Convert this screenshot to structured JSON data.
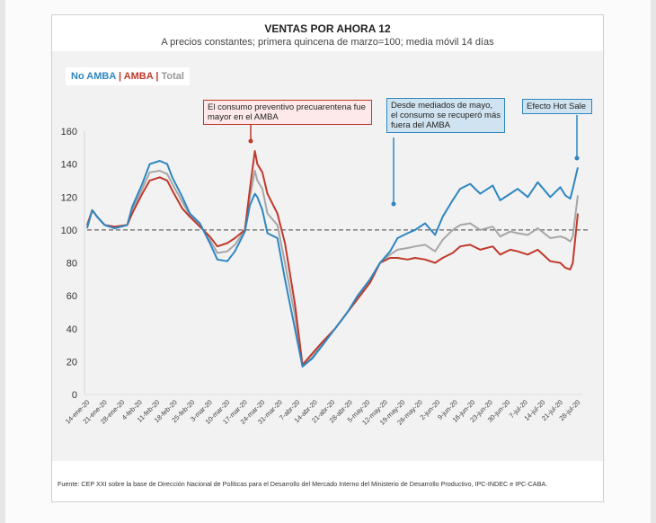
{
  "chart_data": {
    "type": "line",
    "title": "VENTAS POR AHORA 12",
    "subtitle": "A precios constantes; primera quincena de marzo=100; media móvil 14 días",
    "legend": {
      "position": "top-left",
      "entries": [
        {
          "name": "No AMBA",
          "color": "#2e86c1"
        },
        {
          "name": "AMBA",
          "color": "#c0392b"
        },
        {
          "name": "Total",
          "color": "#a6a6a6"
        }
      ],
      "separator": "|"
    },
    "ylim": [
      0,
      160
    ],
    "yticks": [
      0,
      20,
      40,
      60,
      80,
      100,
      120,
      140,
      160
    ],
    "reference_line": 100,
    "xlim": [
      0,
      196
    ],
    "xlabel": "",
    "ylabel": "",
    "xtick_labels": [
      "14-ene-20",
      "21-ene-20",
      "28-ene-20",
      "4-feb-20",
      "11-feb-20",
      "18-feb-20",
      "25-feb-20",
      "3-mar-20",
      "10-mar-20",
      "17-mar-20",
      "24-mar-20",
      "31-mar-20",
      "7-abr-20",
      "14-abr-20",
      "21-abr-20",
      "28-abr-20",
      "5-may-20",
      "12-may-20",
      "19-may-20",
      "26-may-20",
      "2-jun-20",
      "9-jun-20",
      "16-jun-20",
      "23-jun-20",
      "30-jun-20",
      "7-jul-20",
      "14-jul-20",
      "21-jul-20",
      "28-jul-20"
    ],
    "x": [
      0,
      2,
      4,
      7,
      11,
      16,
      18,
      22,
      25,
      29,
      32,
      34,
      38,
      41,
      45,
      49,
      52,
      56,
      59,
      63,
      65,
      67,
      68,
      70,
      72,
      76,
      79,
      83,
      86,
      90,
      94,
      99,
      104,
      108,
      113,
      117,
      121,
      124,
      128,
      131,
      135,
      139,
      142,
      146,
      149,
      153,
      157,
      162,
      165,
      169,
      172,
      176,
      180,
      185,
      189,
      191,
      193,
      194,
      196
    ],
    "series": [
      {
        "name": "No AMBA",
        "values": [
          101,
          112,
          108,
          103,
          101,
          103,
          114,
          128,
          140,
          142,
          140,
          132,
          120,
          110,
          104,
          92,
          82,
          81,
          87,
          99,
          115,
          122,
          120,
          112,
          98,
          95,
          70,
          40,
          17,
          22,
          30,
          40,
          50,
          60,
          70,
          80,
          87,
          95,
          98,
          100,
          104,
          97,
          108,
          118,
          125,
          128,
          122,
          127,
          118,
          122,
          125,
          120,
          129,
          120,
          126,
          121,
          119,
          125,
          138
        ]
      },
      {
        "name": "AMBA",
        "values": [
          103,
          112,
          108,
          103,
          102,
          103,
          110,
          122,
          130,
          132,
          130,
          124,
          113,
          108,
          102,
          96,
          90,
          92,
          95,
          100,
          125,
          148,
          140,
          135,
          122,
          110,
          92,
          55,
          18,
          25,
          32,
          40,
          50,
          58,
          68,
          80,
          83,
          83,
          82,
          83,
          82,
          80,
          83,
          86,
          90,
          91,
          88,
          90,
          85,
          88,
          87,
          85,
          88,
          81,
          80,
          77,
          76,
          80,
          110
        ]
      },
      {
        "name": "Total",
        "values": [
          102,
          112,
          108,
          103,
          101,
          103,
          112,
          125,
          135,
          136,
          134,
          128,
          117,
          109,
          103,
          94,
          86,
          87,
          91,
          100,
          120,
          136,
          130,
          125,
          110,
          103,
          80,
          48,
          17,
          23,
          31,
          40,
          50,
          59,
          69,
          80,
          85,
          88,
          89,
          90,
          91,
          87,
          94,
          100,
          103,
          104,
          100,
          102,
          96,
          99,
          98,
          97,
          101,
          95,
          96,
          95,
          93,
          96,
          121
        ]
      }
    ],
    "annotations": [
      {
        "text": "El consumo preventivo precuarentena fue mayor en el AMBA",
        "series": "AMBA",
        "color": "#c0392b"
      },
      {
        "text": "Desde mediados de mayo, el consumo se recuperó más fuera del AMBA",
        "series": "No AMBA",
        "color": "#2e86c1"
      },
      {
        "text": "Efecto Hot Sale",
        "series": "No AMBA",
        "color": "#2e86c1"
      }
    ],
    "source": "Fuente: CEP XXI sobre la base de Dirección Nacional de Políticas para el Desarrollo del Mercado Interno del Ministerio de Desarrollo Productivo, IPC-INDEC e IPC-CABA.",
    "grid": false
  }
}
